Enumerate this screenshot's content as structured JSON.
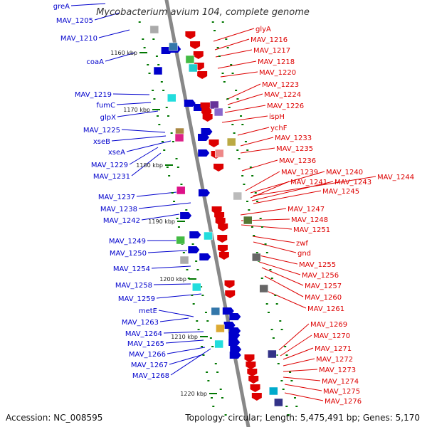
{
  "title": "Mycobacterium avium 104, complete genome",
  "footer": {
    "accession": "Accession: NC_008595",
    "topology": "Topology: circular; Length: 5,475,491 bp; Genes: 5,170"
  },
  "colors": {
    "backbone": "#888888",
    "left_label": "#0000cc",
    "right_label": "#dd0000",
    "tick_marks": "#007700"
  },
  "scale_ticks": [
    "1160 kbp",
    "1170 kbp",
    "1180 kbp",
    "1190 kbp",
    "1200 kbp",
    "1210 kbp",
    "1220 kbp"
  ],
  "left_labels": [
    "greA",
    "MAV_1205",
    "MAV_1210",
    "coaA",
    "MAV_1219",
    "fumC",
    "glpX",
    "MAV_1225",
    "xseB",
    "xseA",
    "MAV_1229",
    "MAV_1231",
    "MAV_1237",
    "MAV_1238",
    "MAV_1242",
    "MAV_1249",
    "MAV_1250",
    "MAV_1254",
    "MAV_1258",
    "MAV_1259",
    "metE",
    "MAV_1263",
    "MAV_1264",
    "MAV_1265",
    "MAV_1266",
    "MAV_1267",
    "MAV_1268"
  ],
  "right_labels": [
    "glyA",
    "MAV_1216",
    "MAV_1217",
    "MAV_1218",
    "MAV_1220",
    "MAV_1223",
    "MAV_1224",
    "MAV_1226",
    "ispH",
    "ychF",
    "MAV_1233",
    "MAV_1235",
    "MAV_1236",
    "MAV_1239",
    "MAV_1240",
    "MAV_1244",
    "MAV_1241",
    "MAV_1243",
    "MAV_1245",
    "MAV_1247",
    "MAV_1248",
    "MAV_1251",
    "zwf",
    "gnd",
    "MAV_1255",
    "MAV_1256",
    "MAV_1257",
    "MAV_1260",
    "MAV_1261",
    "MAV_1269",
    "MAV_1270",
    "MAV_1271",
    "MAV_1272",
    "MAV_1273",
    "MAV_1274",
    "MAV_1275",
    "MAV_1276"
  ]
}
